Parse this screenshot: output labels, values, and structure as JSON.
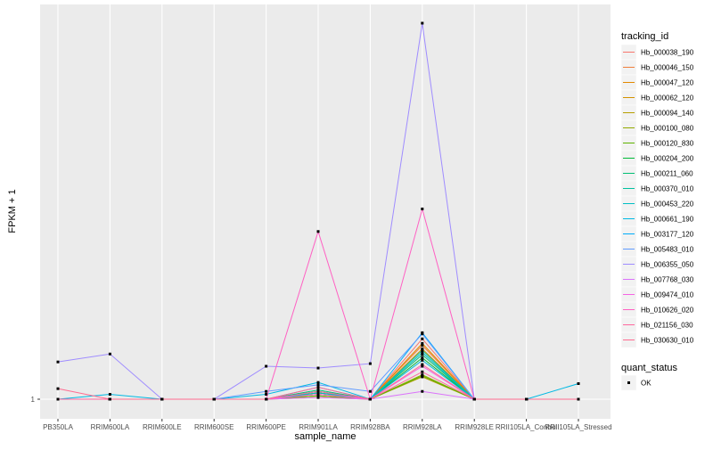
{
  "chart_data": {
    "type": "line",
    "xlabel": "sample_name",
    "ylabel": "FPKM + 1",
    "categories": [
      "PB350LA",
      "RRIM600LA",
      "RRIM600LE",
      "RRIM600SE",
      "RRIM600PE",
      "RRIM901LA",
      "RRIM928BA",
      "RRIM928LA",
      "RRIM928LE",
      "RRII105LA_Control",
      "RRII105LA_Stressed"
    ],
    "y_ticks": [
      {
        "label": "1",
        "value": 1
      }
    ],
    "legend_title": "tracking_id",
    "legend2_title": "quant_status",
    "legend2_items": [
      {
        "label": "OK"
      }
    ],
    "series": [
      {
        "name": "Hb_000038_190",
        "color": "#F8766D",
        "values": [
          1.0,
          1.0,
          1.0,
          1.0,
          1.0,
          1.4,
          1.0,
          7.5,
          1.0,
          1.0,
          1.0
        ]
      },
      {
        "name": "Hb_000046_150",
        "color": "#F07F3C",
        "values": [
          1.0,
          1.0,
          1.0,
          1.0,
          1.0,
          1.3,
          1.0,
          6.5,
          1.0,
          1.0,
          1.0
        ]
      },
      {
        "name": "Hb_000047_120",
        "color": "#E38900",
        "values": [
          1.0,
          1.0,
          1.0,
          1.0,
          1.0,
          1.5,
          1.0,
          6.8,
          1.0,
          1.0,
          1.0
        ]
      },
      {
        "name": "Hb_000062_120",
        "color": "#D39200",
        "values": [
          1.0,
          1.0,
          1.0,
          1.0,
          1.0,
          1.2,
          1.0,
          6.0,
          1.0,
          1.0,
          1.0
        ]
      },
      {
        "name": "Hb_000094_140",
        "color": "#B79F00",
        "values": [
          1.0,
          1.0,
          1.0,
          1.0,
          1.0,
          1.1,
          1.0,
          2.7,
          1.0,
          1.0,
          1.0
        ]
      },
      {
        "name": "Hb_000100_080",
        "color": "#93AA00",
        "values": [
          1.0,
          1.0,
          1.0,
          1.0,
          1.0,
          1.3,
          1.0,
          2.9,
          1.0,
          1.0,
          1.0
        ]
      },
      {
        "name": "Hb_000120_830",
        "color": "#5EB300",
        "values": [
          1.0,
          1.0,
          1.0,
          1.0,
          1.0,
          1.2,
          1.0,
          2.8,
          1.0,
          1.0,
          1.0
        ]
      },
      {
        "name": "Hb_000204_200",
        "color": "#00BA38",
        "values": [
          1.0,
          1.0,
          1.0,
          1.0,
          1.0,
          1.4,
          1.0,
          4.8,
          1.0,
          1.0,
          1.0
        ]
      },
      {
        "name": "Hb_000211_060",
        "color": "#00BF74",
        "values": [
          1.0,
          1.0,
          1.0,
          1.0,
          1.0,
          1.6,
          1.0,
          5.2,
          1.0,
          1.0,
          1.0
        ]
      },
      {
        "name": "Hb_000370_010",
        "color": "#00C19F",
        "values": [
          1.0,
          1.0,
          1.0,
          1.0,
          1.0,
          1.5,
          1.0,
          5.8,
          1.0,
          1.0,
          1.0
        ]
      },
      {
        "name": "Hb_000453_220",
        "color": "#00BFC4",
        "values": [
          1.0,
          1.0,
          1.0,
          1.0,
          1.0,
          1.4,
          1.0,
          5.5,
          1.0,
          1.0,
          1.0
        ]
      },
      {
        "name": "Hb_000661_190",
        "color": "#00B9E3",
        "values": [
          1.0,
          1.3,
          1.0,
          1.0,
          1.3,
          2.2,
          1.0,
          4.5,
          1.0,
          1.0,
          2.1
        ]
      },
      {
        "name": "Hb_003177_120",
        "color": "#00ADFA",
        "values": [
          1.0,
          1.0,
          1.0,
          1.0,
          1.0,
          1.8,
          1.0,
          8.5,
          1.0,
          1.0,
          1.0
        ]
      },
      {
        "name": "Hb_005483_010",
        "color": "#619CFF",
        "values": [
          1.0,
          1.0,
          1.0,
          1.0,
          1.5,
          2.0,
          1.5,
          8.3,
          1.0,
          1.0,
          1.0
        ]
      },
      {
        "name": "Hb_006355_050",
        "color": "#9F8CFF",
        "values": [
          4.3,
          5.3,
          1.0,
          1.0,
          3.8,
          3.6,
          4.1,
          140,
          1.0,
          1.0,
          1.0
        ]
      },
      {
        "name": "Hb_007768_030",
        "color": "#DB72FB",
        "values": [
          1.0,
          1.0,
          1.0,
          1.0,
          1.0,
          1.1,
          1.0,
          1.5,
          1.0,
          1.0,
          1.0
        ]
      },
      {
        "name": "Hb_009474_010",
        "color": "#F564E3",
        "values": [
          1.0,
          1.0,
          1.0,
          1.0,
          1.0,
          1.3,
          1.0,
          3.8,
          1.0,
          1.0,
          1.0
        ]
      },
      {
        "name": "Hb_010626_020",
        "color": "#FF61C3",
        "values": [
          1.0,
          1.0,
          1.0,
          1.0,
          1.0,
          34.0,
          1.0,
          42.0,
          1.0,
          1.0,
          1.0
        ]
      },
      {
        "name": "Hb_021156_030",
        "color": "#FF689F",
        "values": [
          1.0,
          1.0,
          1.0,
          1.0,
          1.0,
          1.5,
          1.0,
          3.2,
          1.0,
          1.0,
          1.0
        ]
      },
      {
        "name": "Hb_030630_010",
        "color": "#FF6C91",
        "values": [
          1.7,
          1.0,
          1.0,
          1.0,
          1.0,
          1.8,
          1.0,
          4.0,
          1.0,
          1.0,
          1.0
        ]
      }
    ]
  }
}
